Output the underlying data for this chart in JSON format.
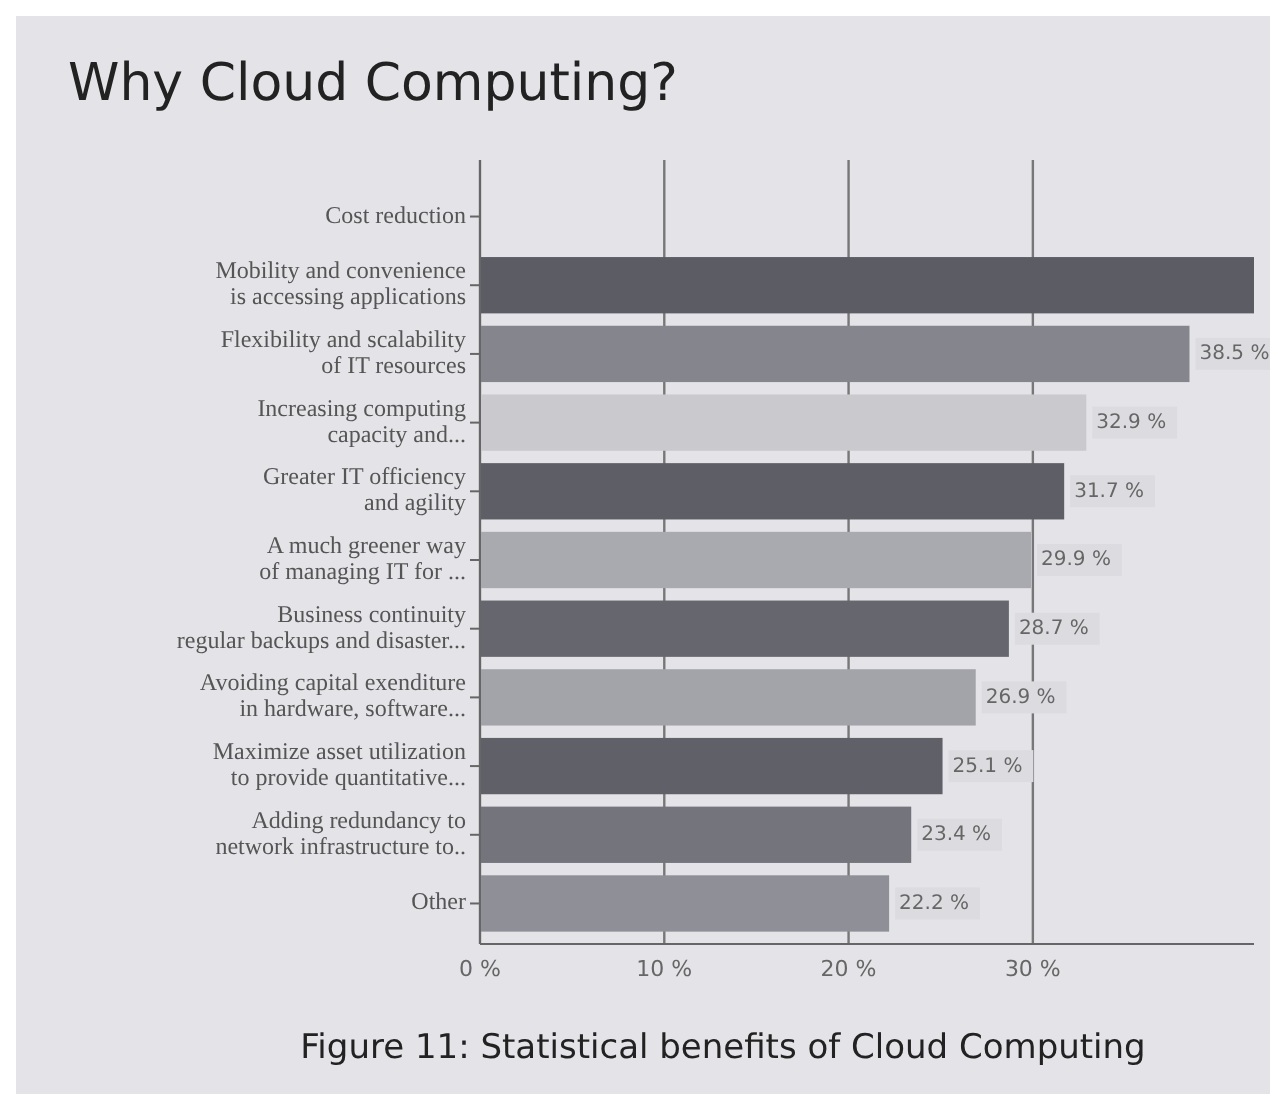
{
  "chart_data": {
    "type": "bar",
    "orientation": "horizontal",
    "title": "Why Cloud Computing?",
    "categories": [
      "Cost reduction",
      "Mobility and convenience\nis accessing applications",
      "Flexibility and scalability\nof IT resources",
      "Increasing computing\ncapacity and...",
      "Greater IT officiency\nand agility",
      "A much greener way\nof managing IT for ...",
      "Business continuity\nregular backups and disaster...",
      "Avoiding capital exenditure\nin hardware, software...",
      "Maximize asset utilization\nto provide quantitative...",
      "Adding redundancy to\nnetwork infrastructure to..",
      "Other"
    ],
    "values": [
      null,
      42,
      38.5,
      32.9,
      31.7,
      29.9,
      28.7,
      26.9,
      25.1,
      23.4,
      22.2
    ],
    "value_labels": [
      null,
      null,
      "38.5 %",
      "32.9 %",
      "31.7 %",
      "29.9 %",
      "28.7 %",
      "26.9 %",
      "25.1 %",
      "23.4 %",
      "22.2 %"
    ],
    "colors": [
      null,
      "#5c5c64",
      "#85858d",
      "#c9c9ce",
      "#5e5e66",
      "#a9a9b0",
      "#66666e",
      "#a3a3aa",
      "#606068",
      "#74747c",
      "#8f8f97"
    ],
    "xlim": [
      0,
      42
    ],
    "xticks": [
      {
        "value": 0,
        "label": "0 %"
      },
      {
        "value": 10,
        "label": "10 %"
      },
      {
        "value": 20,
        "label": "20 %"
      },
      {
        "value": 30,
        "label": "30 %"
      }
    ],
    "grid": "x",
    "annotations": [
      "Figure 11: Statistical benefits of Cloud Computing"
    ]
  }
}
